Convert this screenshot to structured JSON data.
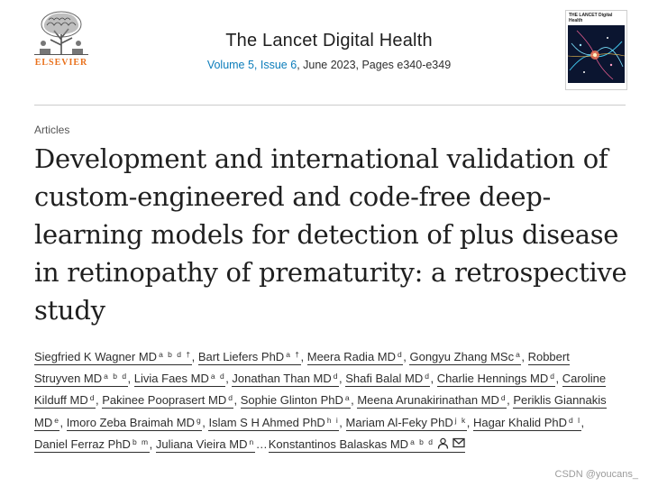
{
  "publisher": {
    "name": "ELSEVIER"
  },
  "journal": {
    "title": "The Lancet Digital Health",
    "volume": "Volume 5, Issue 6",
    "issue_details": ", June 2023, Pages e340-e349",
    "cover_label": "THE LANCET Digital Health"
  },
  "article": {
    "type": "Articles",
    "title": "Development and international validation of custom-engineered and code-free deep-learning models for detection of plus disease in retinopathy of prematurity: a retrospective study"
  },
  "authors": [
    {
      "name": "Siegfried K Wagner MD",
      "sup": "a b d †"
    },
    {
      "name": "Bart Liefers PhD",
      "sup": "a †"
    },
    {
      "name": "Meera Radia MD",
      "sup": "d"
    },
    {
      "name": "Gongyu Zhang MSc",
      "sup": "a"
    },
    {
      "name": "Robbert Struyven MD",
      "sup": "a b d"
    },
    {
      "name": "Livia Faes MD",
      "sup": "a d"
    },
    {
      "name": "Jonathan Than MD",
      "sup": "d"
    },
    {
      "name": "Shafi Balal MD",
      "sup": "d"
    },
    {
      "name": "Charlie Hennings MD",
      "sup": "d"
    },
    {
      "name": "Caroline Kilduff MD",
      "sup": "d"
    },
    {
      "name": "Pakinee Pooprasert MD",
      "sup": "d"
    },
    {
      "name": "Sophie Glinton PhD",
      "sup": "a"
    },
    {
      "name": "Meena Arunakirinathan MD",
      "sup": "d"
    },
    {
      "name": "Periklis Giannakis MD",
      "sup": "e"
    },
    {
      "name": "Imoro Zeba Braimah MD",
      "sup": "g"
    },
    {
      "name": "Islam S H Ahmed PhD",
      "sup": "h i"
    },
    {
      "name": "Mariam Al-Feky PhD",
      "sup": "j k"
    },
    {
      "name": "Hagar Khalid PhD",
      "sup": "d l"
    },
    {
      "name": "Daniel Ferraz PhD",
      "sup": "b m"
    },
    {
      "name": "Juliana Vieira MD",
      "sup": "n"
    },
    {
      "name": "Konstantinos Balaskas MD",
      "sup": "a b d"
    }
  ],
  "ellipsis": "…",
  "watermark": "CSDN @youcans_",
  "colors": {
    "link": "#0c7dbb",
    "publisher": "#e9711c",
    "text": "#2e2e2e"
  }
}
